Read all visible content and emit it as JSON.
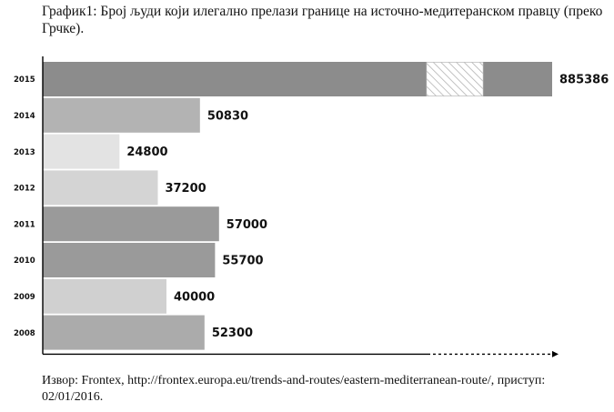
{
  "title": "График1: Број људи који илегално прелази границе на источно-медитеранском правцу (преко Грчке).",
  "source": "Извор: Frontex, http://frontex.europa.eu/trends-and-routes/eastern-mediterranean-route/, приступ: 02/01/2016.",
  "chart_data": {
    "type": "bar",
    "orientation": "horizontal",
    "title": "График1: Број људи који илегално прелази границе на источно-медитеранском правцу (преко Грчке).",
    "xlabel": "",
    "ylabel": "",
    "categories": [
      "2015",
      "2014",
      "2013",
      "2012",
      "2011",
      "2010",
      "2009",
      "2008"
    ],
    "values": [
      885386,
      50830,
      24800,
      37200,
      57000,
      55700,
      40000,
      52300
    ],
    "value_labels": [
      "885386",
      "50830",
      "24800",
      "37200",
      "57000",
      "55700",
      "40000",
      "52300"
    ],
    "axis_break": {
      "bar": "2015",
      "style": "hatched"
    },
    "grid": false,
    "legend": "none",
    "colors": {
      "2015": "#8c8c8c",
      "2014": "#b3b3b3",
      "2013": "#e3e3e3",
      "2012": "#d4d4d4",
      "2011": "#9a9a9a",
      "2010": "#9a9a9a",
      "2009": "#d0d0d0",
      "2008": "#ababab"
    }
  }
}
